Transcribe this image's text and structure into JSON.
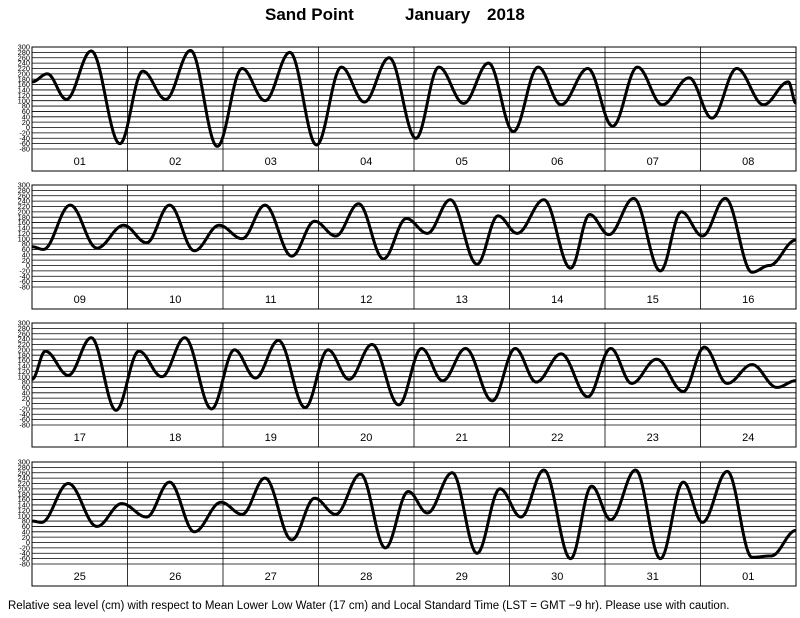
{
  "header": {
    "station": "Sand Point",
    "month": "January",
    "year": "2018"
  },
  "footer": {
    "note": "Relative sea level (cm) with respect to Mean Lower Low Water (17 cm) and Local Standard Time (LST = GMT −9 hr). Please use with caution."
  },
  "chart_data": {
    "type": "line",
    "title": "Sand Point      January   2018",
    "ylim": [
      -80,
      300
    ],
    "yticks": [
      300,
      280,
      260,
      240,
      220,
      200,
      180,
      160,
      140,
      120,
      100,
      80,
      60,
      40,
      20,
      0,
      -20,
      -40,
      -60,
      -80
    ],
    "grid": true,
    "panels": [
      {
        "days": [
          "01",
          "02",
          "03",
          "04",
          "05",
          "06",
          "07",
          "08"
        ],
        "keypoints": [
          [
            0.0,
            170
          ],
          [
            0.4,
            200
          ],
          [
            0.9,
            105
          ],
          [
            1.55,
            285
          ],
          [
            2.3,
            -60
          ],
          [
            2.9,
            210
          ],
          [
            3.5,
            105
          ],
          [
            4.15,
            287
          ],
          [
            4.85,
            -70
          ],
          [
            5.5,
            220
          ],
          [
            6.1,
            100
          ],
          [
            6.75,
            280
          ],
          [
            7.45,
            -65
          ],
          [
            8.1,
            225
          ],
          [
            8.7,
            95
          ],
          [
            9.35,
            260
          ],
          [
            10.05,
            -40
          ],
          [
            10.65,
            225
          ],
          [
            11.3,
            90
          ],
          [
            11.95,
            240
          ],
          [
            12.6,
            -15
          ],
          [
            13.25,
            225
          ],
          [
            13.85,
            85
          ],
          [
            14.55,
            220
          ],
          [
            15.2,
            5
          ],
          [
            15.85,
            225
          ],
          [
            16.5,
            85
          ],
          [
            17.2,
            185
          ],
          [
            17.8,
            35
          ],
          [
            18.45,
            220
          ],
          [
            19.15,
            85
          ],
          [
            19.8,
            170
          ],
          [
            20.0,
            90
          ]
        ]
      },
      {
        "days": [
          "09",
          "10",
          "11",
          "12",
          "13",
          "14",
          "15",
          "16"
        ],
        "keypoints": [
          [
            0.0,
            70
          ],
          [
            0.3,
            60
          ],
          [
            1.0,
            225
          ],
          [
            1.7,
            65
          ],
          [
            2.4,
            150
          ],
          [
            3.0,
            85
          ],
          [
            3.6,
            225
          ],
          [
            4.25,
            55
          ],
          [
            4.9,
            150
          ],
          [
            5.5,
            100
          ],
          [
            6.1,
            225
          ],
          [
            6.8,
            35
          ],
          [
            7.4,
            165
          ],
          [
            7.95,
            110
          ],
          [
            8.55,
            230
          ],
          [
            9.2,
            25
          ],
          [
            9.8,
            175
          ],
          [
            10.35,
            120
          ],
          [
            10.95,
            245
          ],
          [
            11.65,
            5
          ],
          [
            12.2,
            185
          ],
          [
            12.7,
            120
          ],
          [
            13.4,
            245
          ],
          [
            14.1,
            -10
          ],
          [
            14.6,
            190
          ],
          [
            15.1,
            115
          ],
          [
            15.75,
            250
          ],
          [
            16.45,
            -20
          ],
          [
            17.0,
            200
          ],
          [
            17.55,
            110
          ],
          [
            18.15,
            250
          ],
          [
            18.85,
            -25
          ],
          [
            19.3,
            0
          ],
          [
            20.0,
            95
          ]
        ]
      },
      {
        "days": [
          "17",
          "18",
          "19",
          "20",
          "21",
          "22",
          "23",
          "24"
        ],
        "keypoints": [
          [
            0.0,
            90
          ],
          [
            0.35,
            195
          ],
          [
            0.95,
            105
          ],
          [
            1.55,
            245
          ],
          [
            2.2,
            -25
          ],
          [
            2.8,
            195
          ],
          [
            3.4,
            100
          ],
          [
            4.0,
            245
          ],
          [
            4.7,
            -20
          ],
          [
            5.3,
            200
          ],
          [
            5.85,
            95
          ],
          [
            6.45,
            235
          ],
          [
            7.15,
            -15
          ],
          [
            7.75,
            200
          ],
          [
            8.3,
            90
          ],
          [
            8.9,
            220
          ],
          [
            9.6,
            -5
          ],
          [
            10.2,
            205
          ],
          [
            10.75,
            85
          ],
          [
            11.35,
            205
          ],
          [
            12.05,
            10
          ],
          [
            12.65,
            205
          ],
          [
            13.2,
            80
          ],
          [
            13.85,
            185
          ],
          [
            14.55,
            25
          ],
          [
            15.15,
            205
          ],
          [
            15.7,
            75
          ],
          [
            16.35,
            165
          ],
          [
            17.05,
            45
          ],
          [
            17.6,
            210
          ],
          [
            18.2,
            75
          ],
          [
            18.85,
            145
          ],
          [
            19.5,
            60
          ],
          [
            20.0,
            85
          ]
        ]
      },
      {
        "days": [
          "25",
          "26",
          "27",
          "28",
          "29",
          "30",
          "31",
          "01"
        ],
        "keypoints": [
          [
            0.0,
            80
          ],
          [
            0.25,
            75
          ],
          [
            0.95,
            220
          ],
          [
            1.7,
            60
          ],
          [
            2.35,
            145
          ],
          [
            3.0,
            95
          ],
          [
            3.6,
            225
          ],
          [
            4.25,
            40
          ],
          [
            4.95,
            150
          ],
          [
            5.5,
            105
          ],
          [
            6.1,
            240
          ],
          [
            6.8,
            10
          ],
          [
            7.4,
            165
          ],
          [
            7.95,
            105
          ],
          [
            8.6,
            255
          ],
          [
            9.25,
            -20
          ],
          [
            9.85,
            190
          ],
          [
            10.35,
            110
          ],
          [
            11.0,
            260
          ],
          [
            11.65,
            -40
          ],
          [
            12.25,
            200
          ],
          [
            12.8,
            95
          ],
          [
            13.4,
            270
          ],
          [
            14.1,
            -60
          ],
          [
            14.65,
            210
          ],
          [
            15.15,
            85
          ],
          [
            15.8,
            270
          ],
          [
            16.45,
            -60
          ],
          [
            17.05,
            225
          ],
          [
            17.55,
            75
          ],
          [
            18.2,
            265
          ],
          [
            18.85,
            -55
          ],
          [
            19.35,
            -50
          ],
          [
            20.0,
            45
          ]
        ]
      }
    ]
  }
}
